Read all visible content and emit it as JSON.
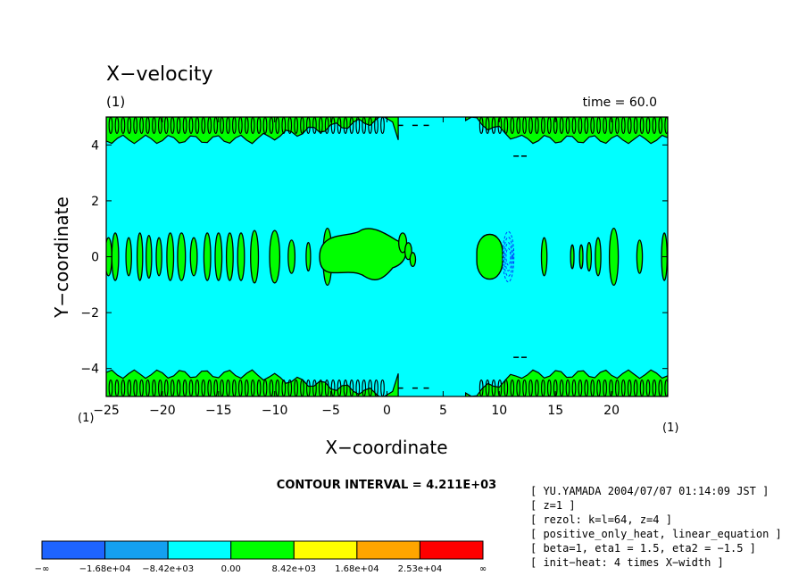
{
  "chart_data": {
    "type": "contour",
    "title": "X−velocity",
    "panel_label": "(1)",
    "time_label": "time = 60.0",
    "xlabel": "X−coordinate",
    "ylabel": "Y−coordinate",
    "xlim": [
      -25,
      25
    ],
    "ylim": [
      -5,
      5
    ],
    "x_ticks": [
      -25,
      -20,
      -15,
      -10,
      -5,
      0,
      5,
      10,
      15,
      20
    ],
    "x_tick_labels": [
      "−25",
      "−20",
      "−15",
      "−10",
      "−5",
      "0",
      "5",
      "10",
      "15",
      "20"
    ],
    "y_ticks": [
      -4,
      -2,
      0,
      2,
      4
    ],
    "y_tick_labels": [
      "−4",
      "−2",
      "0",
      "2",
      "4"
    ],
    "x_unit_label": "(1)",
    "y_unit_label": "(1)",
    "contour_interval_text": "CONTOUR INTERVAL = 4.211E+03",
    "color_levels": [
      "−∞",
      "−1.68e+04",
      "−8.42e+03",
      "0.00",
      "8.42e+03",
      "1.68e+04",
      "2.53e+04",
      "∞"
    ],
    "colors": [
      "#1e64ff",
      "#14a0f0",
      "#00ffff",
      "#00ff00",
      "#ffff00",
      "#ffa500",
      "#ff0000"
    ],
    "background_color": "#00ffff",
    "positive_color": "#00ff00",
    "notes": [
      "[ YU.YAMADA 2004/07/07 01:14:09 JST ]",
      "[ z=1 ]",
      "[ rezol: k=l=64, z=4 ]",
      "[ positive_only_heat, linear_equation ]",
      "[ beta=1, eta1 = 1.5, eta2 = −1.5 ]",
      "[ init−heat: 4 times X−width ]"
    ],
    "features": {
      "main_blob": {
        "x_min": -6,
        "x_max": 2,
        "y_min": -1,
        "y_max": 1
      },
      "right_blob": {
        "x_min": 8,
        "x_max": 10.3,
        "y_min": -0.8,
        "y_max": 0.8
      },
      "equatorial_blobs": [
        {
          "x": -24.8,
          "w": 0.3,
          "h": 0.4
        },
        {
          "x": -24.2,
          "w": 0.3,
          "h": 0.5
        },
        {
          "x": -23.0,
          "w": 0.25,
          "h": 0.4
        },
        {
          "x": -22.0,
          "w": 0.25,
          "h": 0.5
        },
        {
          "x": -21.2,
          "w": 0.25,
          "h": 0.45
        },
        {
          "x": -20.3,
          "w": 0.25,
          "h": 0.4
        },
        {
          "x": -19.3,
          "w": 0.3,
          "h": 0.5
        },
        {
          "x": -18.3,
          "w": 0.35,
          "h": 0.5
        },
        {
          "x": -17.2,
          "w": 0.3,
          "h": 0.4
        },
        {
          "x": -16.0,
          "w": 0.3,
          "h": 0.5
        },
        {
          "x": -15.0,
          "w": 0.3,
          "h": 0.5
        },
        {
          "x": -14.0,
          "w": 0.3,
          "h": 0.5
        },
        {
          "x": -13.0,
          "w": 0.3,
          "h": 0.5
        },
        {
          "x": -11.8,
          "w": 0.35,
          "h": 0.55
        },
        {
          "x": -10.0,
          "w": 0.45,
          "h": 0.55
        },
        {
          "x": -8.5,
          "w": 0.3,
          "h": 0.35
        },
        {
          "x": -7.0,
          "w": 0.2,
          "h": 0.3
        },
        {
          "x": -5.3,
          "w": 0.4,
          "h": 0.6
        },
        {
          "x": 14.0,
          "w": 0.25,
          "h": 0.4
        },
        {
          "x": 16.5,
          "w": 0.15,
          "h": 0.25
        },
        {
          "x": 17.3,
          "w": 0.15,
          "h": 0.25
        },
        {
          "x": 18.0,
          "w": 0.2,
          "h": 0.3
        },
        {
          "x": 18.8,
          "w": 0.25,
          "h": 0.4
        },
        {
          "x": 20.2,
          "w": 0.4,
          "h": 0.6
        },
        {
          "x": 22.5,
          "w": 0.25,
          "h": 0.35
        },
        {
          "x": 24.7,
          "w": 0.25,
          "h": 0.5
        }
      ],
      "small_ovals": [
        {
          "x": 1.4,
          "y": 0.5,
          "r": 0.35
        },
        {
          "x": 1.9,
          "y": 0.2,
          "r": 0.3
        },
        {
          "x": 2.3,
          "y": -0.1,
          "r": 0.25
        }
      ],
      "wall_band_y": 4.2,
      "wall_gap_x": [
        1,
        7
      ]
    }
  }
}
